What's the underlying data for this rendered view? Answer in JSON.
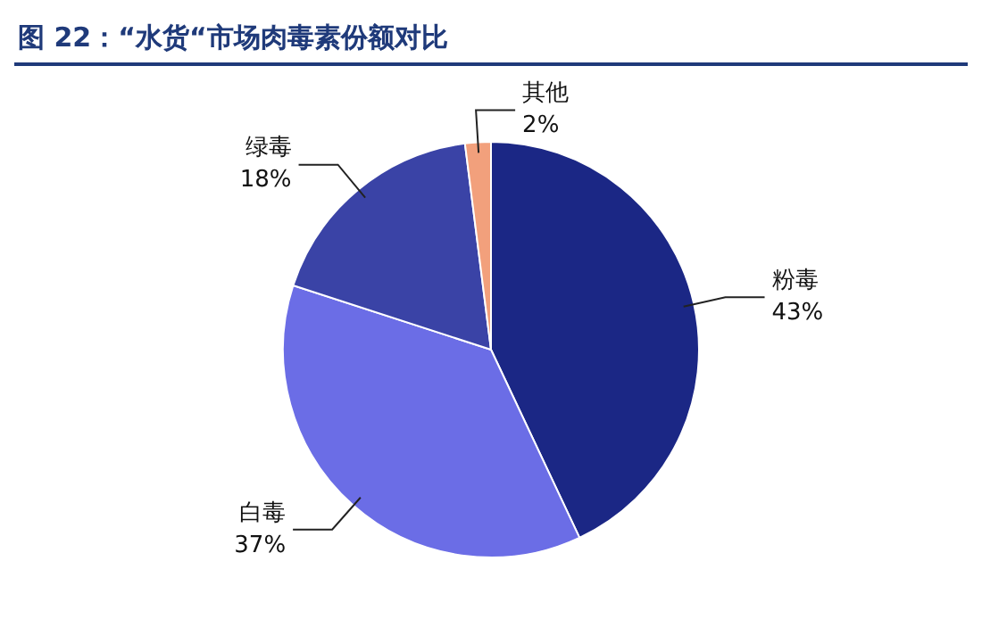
{
  "chart_data": {
    "type": "pie",
    "title": "图 22：“水货“市场肉毒素份额对比",
    "categories": [
      "粉毒",
      "白毒",
      "绿毒",
      "其他"
    ],
    "values": [
      43,
      37,
      18,
      2
    ],
    "colors": [
      "#1b2785",
      "#6b6de6",
      "#3a43a6",
      "#f2a07c"
    ],
    "value_labels": [
      "43%",
      "37%",
      "18%",
      "2%"
    ],
    "legend": false
  }
}
